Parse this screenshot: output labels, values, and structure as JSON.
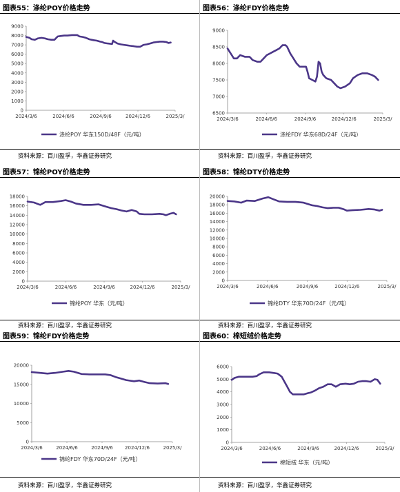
{
  "source_text": "资料来源：百川盈孚，华鑫证券研究",
  "accent_color": "#4b3688",
  "chart_data": [
    {
      "type": "line",
      "title": "图表55：涤纶POY价格走势",
      "series": [
        {
          "name": "涤纶POY 华东150D/48F（元/吨）",
          "color": "#4b3688"
        }
      ],
      "x_ticks": [
        "2024/3/6",
        "2024/6/6",
        "2024/9/6",
        "2024/12/6",
        "2025/3/"
      ],
      "y_ticks": [
        0,
        1000,
        2000,
        3000,
        4000,
        5000,
        6000,
        7000,
        8000,
        9000
      ],
      "ylim": [
        0,
        9000
      ],
      "points": [
        [
          0,
          7850
        ],
        [
          3,
          7750
        ],
        [
          5,
          7600
        ],
        [
          8,
          7550
        ],
        [
          11,
          7700
        ],
        [
          14,
          7750
        ],
        [
          17,
          7700
        ],
        [
          20,
          7600
        ],
        [
          23,
          7550
        ],
        [
          26,
          7550
        ],
        [
          29,
          7900
        ],
        [
          32,
          7950
        ],
        [
          35,
          8000
        ],
        [
          38,
          8000
        ],
        [
          42,
          8050
        ],
        [
          45,
          8050
        ],
        [
          47,
          8050
        ],
        [
          49,
          7900
        ],
        [
          52,
          7850
        ],
        [
          55,
          7750
        ],
        [
          58,
          7600
        ],
        [
          62,
          7500
        ],
        [
          65,
          7450
        ],
        [
          68,
          7350
        ],
        [
          70,
          7300
        ],
        [
          72,
          7200
        ],
        [
          75,
          7150
        ],
        [
          79,
          7100
        ],
        [
          80,
          7450
        ],
        [
          81,
          7350
        ],
        [
          84,
          7150
        ],
        [
          87,
          7050
        ],
        [
          90,
          7000
        ],
        [
          93,
          6950
        ],
        [
          96,
          6900
        ],
        [
          99,
          6850
        ],
        [
          102,
          6800
        ],
        [
          105,
          6800
        ],
        [
          108,
          7000
        ],
        [
          111,
          7050
        ],
        [
          114,
          7150
        ],
        [
          117,
          7250
        ],
        [
          120,
          7300
        ],
        [
          123,
          7350
        ],
        [
          126,
          7350
        ],
        [
          129,
          7300
        ],
        [
          131,
          7200
        ],
        [
          133,
          7250
        ]
      ]
    },
    {
      "type": "line",
      "title": "图表56：涤纶FDY价格走势",
      "series": [
        {
          "name": "涤纶FDY 华东68D/24F（元/吨）",
          "color": "#4b3688"
        }
      ],
      "x_ticks": [
        "2024/3/6",
        "2024/6/6",
        "2024/9/6",
        "2024/12/6",
        "2025/3/"
      ],
      "y_ticks": [
        6500,
        7000,
        7500,
        8000,
        8500,
        9000
      ],
      "ylim": [
        6500,
        9000
      ],
      "points": [
        [
          0,
          8450
        ],
        [
          2,
          8300
        ],
        [
          4,
          8150
        ],
        [
          6,
          8150
        ],
        [
          8,
          8250
        ],
        [
          11,
          8200
        ],
        [
          14,
          8200
        ],
        [
          16,
          8100
        ],
        [
          19,
          8050
        ],
        [
          21,
          8050
        ],
        [
          23,
          8150
        ],
        [
          25,
          8250
        ],
        [
          27,
          8300
        ],
        [
          29,
          8350
        ],
        [
          31,
          8400
        ],
        [
          33,
          8450
        ],
        [
          35,
          8550
        ],
        [
          37,
          8550
        ],
        [
          38,
          8500
        ],
        [
          40,
          8300
        ],
        [
          42,
          8150
        ],
        [
          44,
          8000
        ],
        [
          46,
          7900
        ],
        [
          48,
          7900
        ],
        [
          50,
          7900
        ],
        [
          51,
          7750
        ],
        [
          52,
          7550
        ],
        [
          54,
          7500
        ],
        [
          56,
          7450
        ],
        [
          57,
          7600
        ],
        [
          58,
          8050
        ],
        [
          59,
          8000
        ],
        [
          60,
          7750
        ],
        [
          61,
          7650
        ],
        [
          63,
          7550
        ],
        [
          66,
          7500
        ],
        [
          68,
          7400
        ],
        [
          70,
          7300
        ],
        [
          72,
          7250
        ],
        [
          75,
          7300
        ],
        [
          78,
          7400
        ],
        [
          80,
          7550
        ],
        [
          83,
          7650
        ],
        [
          86,
          7700
        ],
        [
          89,
          7700
        ],
        [
          92,
          7650
        ],
        [
          94,
          7600
        ],
        [
          96,
          7500
        ]
      ]
    },
    {
      "type": "line",
      "title": "图表57：锦纶POY价格走势",
      "series": [
        {
          "name": "锦纶POY 华东（元/吨）",
          "color": "#4b3688"
        }
      ],
      "x_ticks": [
        "2024/3/6",
        "2024/6/6",
        "2024/9/6",
        "2024/12/6",
        "2025/3/"
      ],
      "y_ticks": [
        0,
        2000,
        4000,
        6000,
        8000,
        10000,
        12000,
        14000,
        16000,
        18000
      ],
      "ylim": [
        0,
        18000
      ],
      "points": [
        [
          0,
          16900
        ],
        [
          5,
          16700
        ],
        [
          10,
          16200
        ],
        [
          14,
          16800
        ],
        [
          20,
          16800
        ],
        [
          26,
          17000
        ],
        [
          30,
          17200
        ],
        [
          34,
          16900
        ],
        [
          38,
          16500
        ],
        [
          44,
          16200
        ],
        [
          50,
          16200
        ],
        [
          56,
          16300
        ],
        [
          62,
          15800
        ],
        [
          66,
          15500
        ],
        [
          70,
          15300
        ],
        [
          74,
          15000
        ],
        [
          78,
          14800
        ],
        [
          82,
          15100
        ],
        [
          86,
          14800
        ],
        [
          88,
          14300
        ],
        [
          92,
          14200
        ],
        [
          98,
          14200
        ],
        [
          104,
          14300
        ],
        [
          107,
          14200
        ],
        [
          109,
          14000
        ],
        [
          112,
          14300
        ],
        [
          115,
          14500
        ],
        [
          117,
          14200
        ]
      ]
    },
    {
      "type": "line",
      "title": "图表58：锦纶DTY价格走势",
      "series": [
        {
          "name": "锦纶DTY 华东70D/24F（元/吨）",
          "color": "#4b3688"
        }
      ],
      "x_ticks": [
        "2024/3/6",
        "2024/6/6",
        "2024/9/6",
        "2024/12/6",
        "2025/3/"
      ],
      "y_ticks": [
        0,
        2000,
        4000,
        6000,
        8000,
        10000,
        12000,
        14000,
        16000,
        18000,
        20000
      ],
      "ylim": [
        0,
        20000
      ],
      "points": [
        [
          0,
          18900
        ],
        [
          5,
          18800
        ],
        [
          10,
          18500
        ],
        [
          14,
          19000
        ],
        [
          20,
          18900
        ],
        [
          26,
          19500
        ],
        [
          30,
          19800
        ],
        [
          34,
          19300
        ],
        [
          38,
          18800
        ],
        [
          44,
          18700
        ],
        [
          50,
          18700
        ],
        [
          56,
          18500
        ],
        [
          62,
          17900
        ],
        [
          66,
          17700
        ],
        [
          70,
          17400
        ],
        [
          74,
          17200
        ],
        [
          78,
          17300
        ],
        [
          82,
          17300
        ],
        [
          86,
          16900
        ],
        [
          88,
          16600
        ],
        [
          92,
          16700
        ],
        [
          98,
          16800
        ],
        [
          104,
          17000
        ],
        [
          108,
          16900
        ],
        [
          112,
          16600
        ],
        [
          114,
          16800
        ]
      ]
    },
    {
      "type": "line",
      "title": "图表59：锦纶FDY价格走势",
      "series": [
        {
          "name": "锦纶FDY 华东70D/24F（元/吨）",
          "color": "#4b3688"
        }
      ],
      "x_ticks": [
        "2024/3/6",
        "2024/6/6",
        "2024/9/6",
        "2024/12/6",
        "2025/3/"
      ],
      "y_ticks": [
        0,
        5000,
        10000,
        15000,
        20000
      ],
      "ylim": [
        0,
        20000
      ],
      "points": [
        [
          0,
          18200
        ],
        [
          6,
          18000
        ],
        [
          12,
          17800
        ],
        [
          18,
          18000
        ],
        [
          24,
          18300
        ],
        [
          28,
          18500
        ],
        [
          32,
          18300
        ],
        [
          38,
          17700
        ],
        [
          44,
          17600
        ],
        [
          50,
          17600
        ],
        [
          56,
          17600
        ],
        [
          60,
          17400
        ],
        [
          64,
          16900
        ],
        [
          68,
          16500
        ],
        [
          72,
          16100
        ],
        [
          78,
          15800
        ],
        [
          82,
          16000
        ],
        [
          86,
          15600
        ],
        [
          90,
          15300
        ],
        [
          96,
          15200
        ],
        [
          102,
          15300
        ],
        [
          104,
          15100
        ]
      ]
    },
    {
      "type": "line",
      "title": "图表60：棉短绒价格走势",
      "series": [
        {
          "name": "棉短绒 华东（元/吨）",
          "color": "#4b3688"
        }
      ],
      "x_ticks": [
        "2024/3/6",
        "2024/6/6",
        "2024/9/6",
        "2024/12/6",
        "2025/3/"
      ],
      "y_ticks": [
        0,
        1000,
        2000,
        3000,
        4000,
        5000,
        6000
      ],
      "ylim": [
        0,
        6000
      ],
      "points": [
        [
          0,
          4950
        ],
        [
          2,
          5100
        ],
        [
          5,
          5200
        ],
        [
          10,
          5200
        ],
        [
          15,
          5200
        ],
        [
          18,
          5250
        ],
        [
          20,
          5400
        ],
        [
          23,
          5550
        ],
        [
          27,
          5550
        ],
        [
          30,
          5500
        ],
        [
          33,
          5450
        ],
        [
          36,
          5200
        ],
        [
          38,
          4800
        ],
        [
          40,
          4400
        ],
        [
          42,
          4000
        ],
        [
          44,
          3800
        ],
        [
          46,
          3800
        ],
        [
          49,
          3800
        ],
        [
          52,
          3800
        ],
        [
          55,
          3900
        ],
        [
          57,
          3950
        ],
        [
          60,
          4100
        ],
        [
          63,
          4300
        ],
        [
          66,
          4400
        ],
        [
          69,
          4600
        ],
        [
          72,
          4600
        ],
        [
          75,
          4400
        ],
        [
          78,
          4600
        ],
        [
          82,
          4650
        ],
        [
          85,
          4600
        ],
        [
          88,
          4650
        ],
        [
          91,
          4800
        ],
        [
          94,
          4850
        ],
        [
          97,
          4850
        ],
        [
          100,
          4800
        ],
        [
          103,
          5000
        ],
        [
          105,
          4950
        ],
        [
          107,
          4650
        ]
      ]
    }
  ]
}
